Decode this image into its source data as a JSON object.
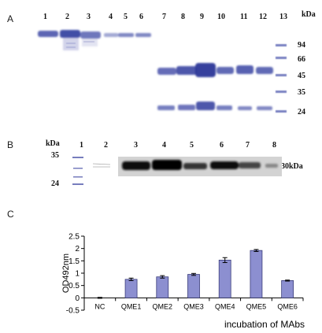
{
  "panelA": {
    "letter": "A",
    "lanes": [
      "1",
      "2",
      "3",
      "4",
      "5",
      "6",
      "7",
      "8",
      "9",
      "10",
      "11",
      "12",
      "13"
    ],
    "kda_label": "kDa",
    "markers": [
      "94",
      "66",
      "45",
      "35",
      "24"
    ]
  },
  "panelB": {
    "letter": "B",
    "kda_label": "kDa",
    "lanes": [
      "1",
      "2",
      "3",
      "4",
      "5",
      "6",
      "7",
      "8"
    ],
    "markers": [
      "35",
      "24"
    ],
    "band_label": "30kDa"
  },
  "panelC": {
    "letter": "C",
    "chart_data": {
      "type": "bar",
      "categories": [
        "NC",
        "QME1",
        "QME2",
        "QME3",
        "QME4",
        "QME5",
        "QME6"
      ],
      "values": [
        0.0,
        0.75,
        0.85,
        0.95,
        1.53,
        1.92,
        0.7
      ],
      "errors": [
        0.02,
        0.05,
        0.05,
        0.04,
        0.1,
        0.04,
        0.02
      ],
      "ylabel": "OD492nm",
      "xlabel": "incubation of MAbs",
      "ylim": [
        -0.5,
        2.5
      ],
      "yticks": [
        "2.5",
        "2",
        "1.5",
        "1",
        "0.5",
        "0",
        "-0.5"
      ],
      "bar_color": "#8c8fd0",
      "grid": false
    }
  }
}
